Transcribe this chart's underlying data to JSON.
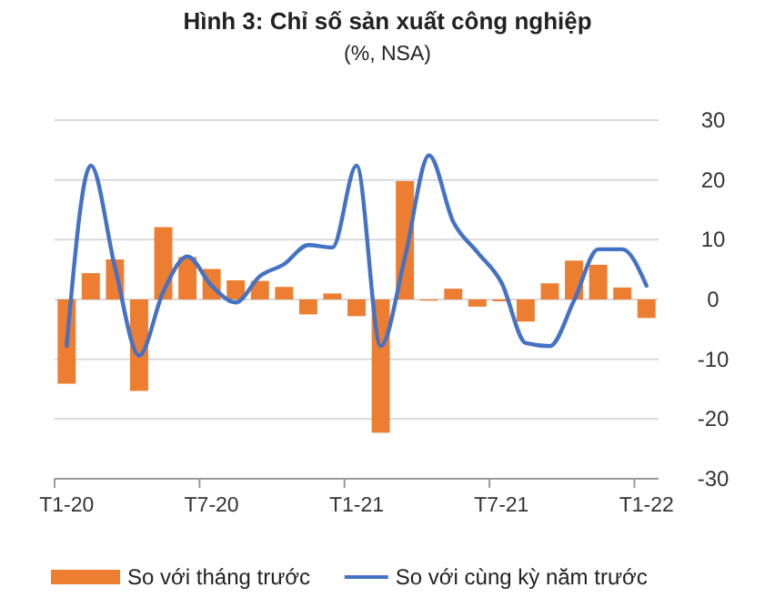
{
  "chart_data": {
    "type": "bar",
    "title": "Hình 3: Chỉ số sản xuất công nghiệp",
    "subtitle": "(%, NSA)",
    "categories": [
      "T1-20",
      null,
      null,
      null,
      null,
      null,
      "T7-20",
      null,
      null,
      null,
      null,
      null,
      "T1-21",
      null,
      null,
      null,
      null,
      null,
      "T7-21",
      null,
      null,
      null,
      null,
      null,
      "T1-22"
    ],
    "series": [
      {
        "name": "So với tháng trước",
        "color": "#ed7d31",
        "values": [
          -14.1,
          4.4,
          6.7,
          -15.3,
          12.1,
          7.1,
          5.1,
          3.2,
          3.1,
          2.1,
          -2.5,
          1.0,
          -2.8,
          -22.3,
          19.8,
          -0.2,
          1.8,
          -1.2,
          -0.3,
          -3.7,
          2.7,
          6.5,
          5.8,
          2.0,
          -3.1
        ]
      },
      {
        "name": "So với cùng kỳ năm trước",
        "type": "line",
        "color": "#4472c4",
        "values": [
          -7.8,
          22.4,
          5.4,
          -9.4,
          1.3,
          7.2,
          2.3,
          -0.5,
          3.9,
          5.9,
          9.1,
          8.7,
          22.4,
          -7.8,
          7,
          24.1,
          13.0,
          7.9,
          2.8,
          -7.3,
          -7.8,
          -0.2,
          8.4,
          8.4,
          2.3
        ]
      }
    ],
    "ylim": [
      -30,
      30
    ],
    "yticks": [
      -30,
      -20,
      -10,
      0,
      10,
      20,
      30
    ],
    "grid": "y",
    "legend": "bottom"
  }
}
